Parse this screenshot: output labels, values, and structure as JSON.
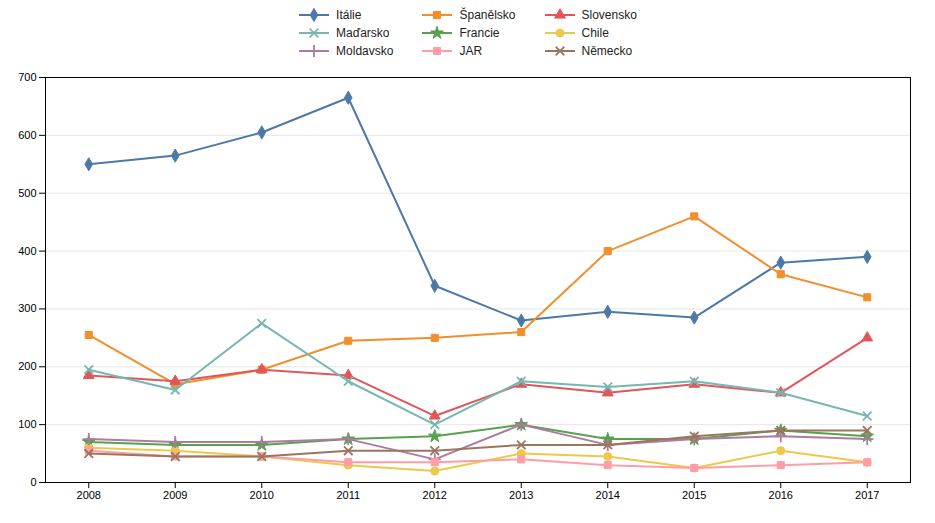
{
  "chart_data": {
    "type": "line",
    "x": [
      2008,
      2009,
      2010,
      2011,
      2012,
      2013,
      2014,
      2015,
      2016,
      2017
    ],
    "series": [
      {
        "name": "Itálie",
        "values": [
          550,
          565,
          605,
          665,
          340,
          280,
          295,
          285,
          380,
          390
        ],
        "marker": "diamond"
      },
      {
        "name": "Španělsko",
        "values": [
          255,
          170,
          195,
          245,
          250,
          260,
          400,
          460,
          360,
          320
        ],
        "marker": "square"
      },
      {
        "name": "Slovensko",
        "values": [
          185,
          175,
          195,
          185,
          115,
          170,
          155,
          170,
          155,
          250
        ],
        "marker": "triangle"
      },
      {
        "name": "Maďarsko",
        "values": [
          195,
          160,
          275,
          175,
          100,
          175,
          165,
          175,
          155,
          115
        ],
        "marker": "times"
      },
      {
        "name": "Francie",
        "values": [
          70,
          65,
          65,
          75,
          80,
          100,
          75,
          75,
          90,
          80
        ],
        "marker": "star"
      },
      {
        "name": "Chile",
        "values": [
          60,
          55,
          45,
          30,
          20,
          50,
          45,
          25,
          55,
          35
        ],
        "marker": "circle"
      },
      {
        "name": "Moldavsko",
        "values": [
          75,
          70,
          70,
          75,
          40,
          100,
          65,
          75,
          80,
          75
        ],
        "marker": "plus"
      },
      {
        "name": "JAR",
        "values": [
          55,
          45,
          45,
          35,
          35,
          40,
          30,
          25,
          30,
          35
        ],
        "marker": "square"
      },
      {
        "name": "Německo",
        "values": [
          50,
          45,
          45,
          55,
          55,
          65,
          65,
          80,
          90,
          90
        ],
        "marker": "times"
      }
    ],
    "xlim": [
      2007.5,
      2017.5
    ],
    "xticks": [
      2008,
      2009,
      2010,
      2011,
      2012,
      2013,
      2014,
      2015,
      2016,
      2017
    ],
    "ylim": [
      0,
      700
    ],
    "yticks": [
      0,
      100,
      200,
      300,
      400,
      500,
      600,
      700
    ],
    "grid": true,
    "legend": "top"
  }
}
